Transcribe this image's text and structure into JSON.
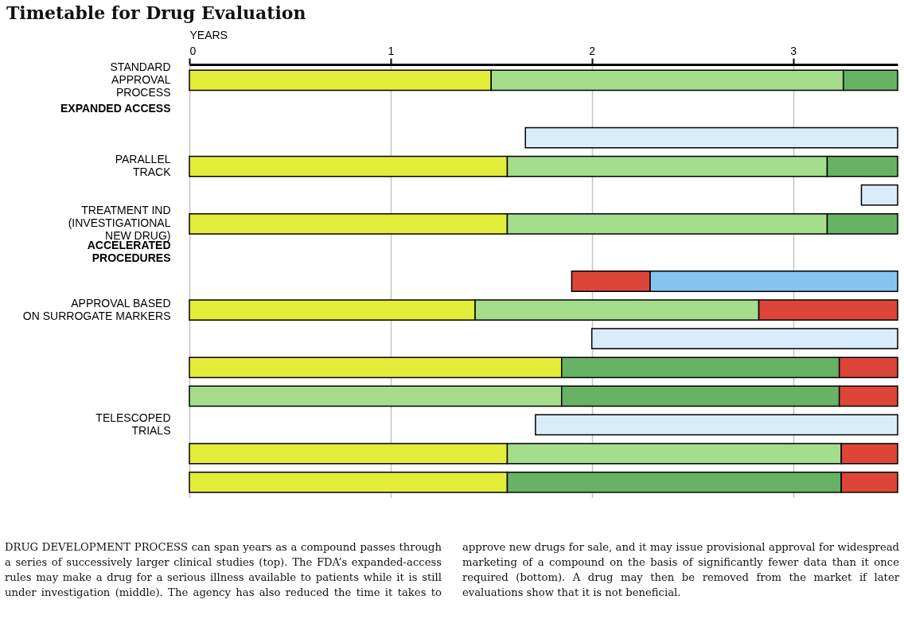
{
  "chart_data": {
    "type": "bar",
    "orientation": "horizontal",
    "title": "Timetable for Drug Evaluation",
    "xlabel": "YEARS",
    "categories": [
      "STANDARD\nAPPROVAL\nPROCESS",
      "EXPANDED ACCESS",
      null,
      "PARALLEL\nTRACK",
      null,
      "TREATMENT IND\n(INVESTIGATIONAL\nNEW DRUG)",
      "ACCELERATED\nPROCEDURES",
      null,
      "APPROVAL BASED\nON SURROGATE MARKERS",
      null,
      null,
      null,
      "TELESCOPED\nTRIALS",
      null,
      null
    ],
    "series": [
      {
        "color": "#e4ec3a",
        "values": [
          1.5,
          null,
          null,
          1.58,
          null,
          1.58,
          null,
          null,
          1.42,
          null,
          1.85,
          null,
          null,
          1.58,
          1.58
        ],
        "base": [
          0,
          null,
          null,
          0,
          null,
          0,
          null,
          null,
          0,
          null,
          0,
          null,
          null,
          0,
          0
        ]
      },
      {
        "color": "#a4dd8c",
        "values": [
          1.75,
          null,
          null,
          1.59,
          null,
          1.59,
          null,
          null,
          1.41,
          null,
          null,
          1.85,
          null,
          1.66,
          null
        ],
        "base": [
          1.5,
          null,
          null,
          1.58,
          null,
          1.58,
          null,
          null,
          1.42,
          null,
          null,
          0,
          null,
          1.58,
          null
        ]
      },
      {
        "color": "#68b264",
        "values": [
          0.27,
          null,
          null,
          0.35,
          null,
          0.35,
          null,
          null,
          null,
          null,
          1.38,
          1.38,
          null,
          null,
          1.66
        ],
        "base": [
          3.25,
          null,
          null,
          3.17,
          null,
          3.17,
          null,
          null,
          null,
          null,
          1.85,
          1.85,
          null,
          null,
          1.58
        ]
      },
      {
        "color": "#de4539",
        "values": [
          null,
          null,
          null,
          null,
          null,
          null,
          null,
          0.39,
          0.69,
          null,
          0.29,
          0.29,
          null,
          0.28,
          0.28
        ],
        "base": [
          null,
          null,
          null,
          null,
          null,
          null,
          null,
          1.9,
          2.83,
          null,
          3.23,
          3.23,
          null,
          3.24,
          3.24
        ]
      },
      {
        "color": "#86c5ee",
        "values": [
          null,
          null,
          null,
          null,
          null,
          null,
          null,
          1.23,
          null,
          null,
          null,
          null,
          null,
          null,
          null
        ],
        "base": [
          null,
          null,
          null,
          null,
          null,
          null,
          null,
          2.29,
          null,
          null,
          null,
          null,
          null,
          null,
          null
        ]
      },
      {
        "color": "#d8ecfa",
        "values": [
          null,
          null,
          1.85,
          null,
          0.18,
          null,
          null,
          null,
          null,
          1.52,
          null,
          null,
          1.8,
          null,
          null
        ],
        "base": [
          null,
          null,
          1.67,
          null,
          3.34,
          null,
          null,
          null,
          null,
          2.0,
          null,
          null,
          1.72,
          null,
          null
        ]
      }
    ],
    "xlim": [
      0,
      3.52
    ],
    "xticks": [
      0,
      1,
      2,
      3
    ],
    "grid": "x",
    "legend": false,
    "annotations": [
      "DRUG DEVELOPMENT PROCESS can span years as a compound passes through a series of successively larger clinical studies (top). The FDA’s expanded-access rules may make a drug for a serious illness available to patients while it is still under investigation (middle). The agency has also reduced the time it takes to approve new drugs for sale, and it may issue provisional approval for widespread marketing of a compound on the basis of significantly fewer data than it once required (bottom). A drug may then be removed from the market if later evaluations show that it is not beneficial."
    ]
  }
}
